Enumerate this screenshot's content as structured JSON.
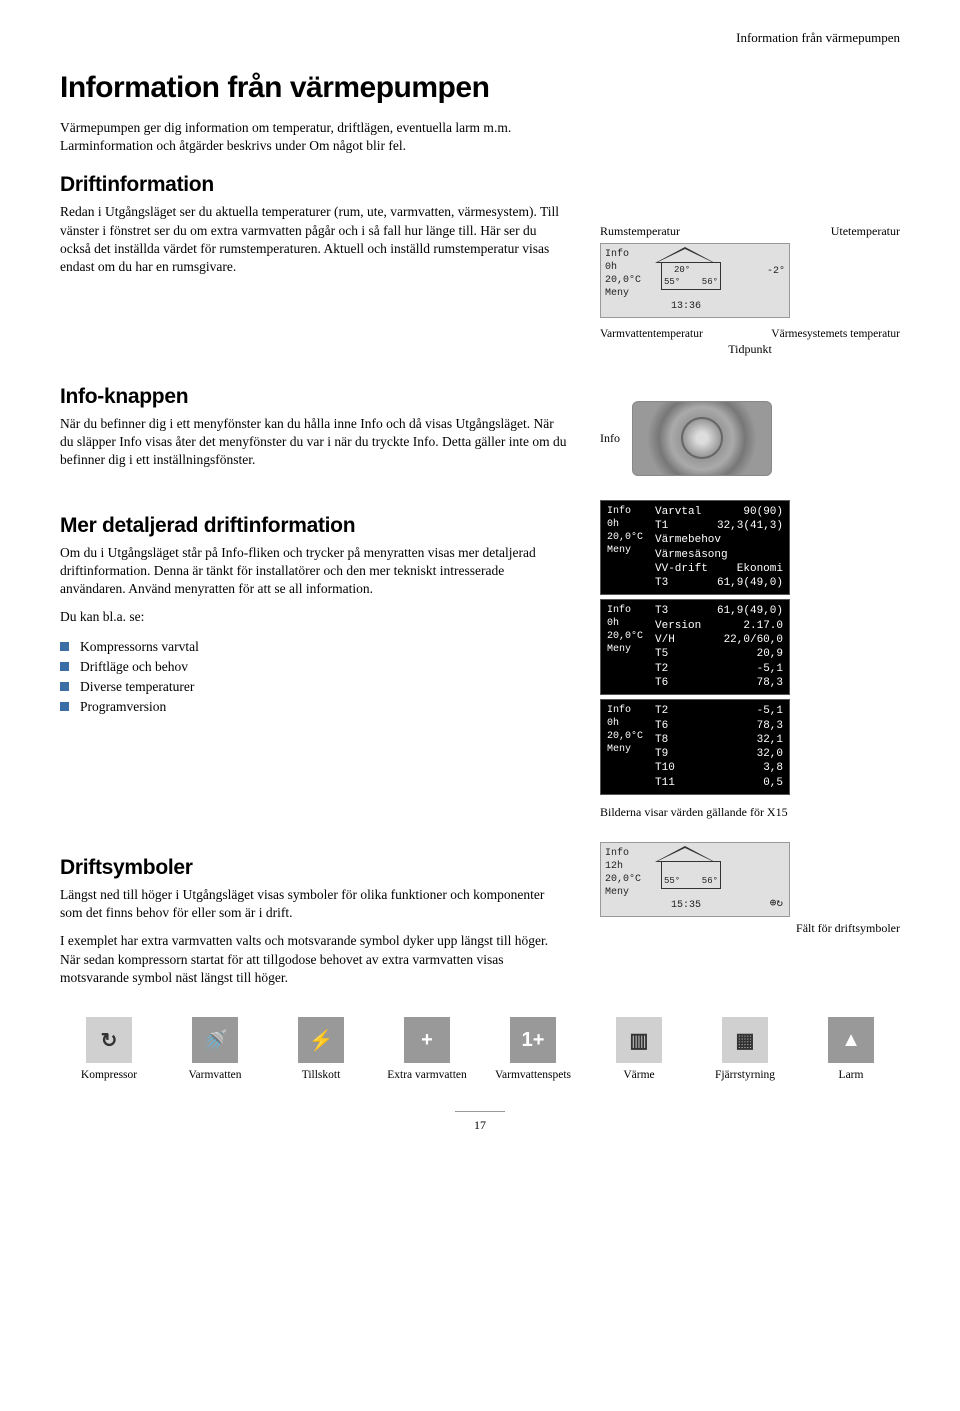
{
  "header": {
    "running_head": "Information från värmepumpen"
  },
  "title": "Information från värmepumpen",
  "intro": "Värmepumpen ger dig information om temperatur, driftlägen, eventuella larm m.m. Larminformation och åtgärder beskrivs under Om något blir fel.",
  "sec1": {
    "heading": "Driftinformation",
    "body": "Redan i Utgångsläget ser du aktuella temperaturer (rum, ute, varmvatten, värmesystem). Till vänster i fönstret ser du om extra varmvatten pågår och i så fall hur länge till. Här ser du också det inställda värdet för rumstemperaturen. Aktuell och inställd rumstemperatur visas endast om du har en rumsgivare.",
    "label_left": "Rumstemperatur",
    "label_right": "Utetemperatur",
    "lcd": {
      "side1": "Info",
      "side2": "0h",
      "side3": "20,0°C",
      "side4": "Meny",
      "val_in": "20°",
      "val_out": "-2°",
      "val_hw": "55°",
      "val_sys": "56°",
      "time": "13:36"
    },
    "annot_hw": "Varmvattentemperatur",
    "annot_sys": "Värmesystemets temperatur",
    "annot_time": "Tidpunkt"
  },
  "sec2": {
    "heading": "Info-knappen",
    "body": "När du befinner dig i ett menyfönster kan du hålla inne Info och då visas Utgångsläget. När du släpper Info visas åter det menyfönster du var i när du tryckte Info. Detta gäller inte om du befinner dig i ett inställningsfönster.",
    "label": "Info"
  },
  "sec3": {
    "heading": "Mer detaljerad driftinformation",
    "body": "Om du i Utgångsläget står på Info-fliken och trycker på menyratten visas mer detaljerad driftinformation. Denna är tänkt för installatörer och den mer tekniskt intresserade användaren. Använd menyratten för att se all information.",
    "list_intro": "Du kan bl.a. se:",
    "items": [
      "Kompressorns varvtal",
      "Driftläge och behov",
      "Diverse temperaturer",
      "Programversion"
    ],
    "lcd1": {
      "side1": "Info",
      "side2": "0h",
      "side3": "20,0°C",
      "side4": "Meny",
      "rows": [
        [
          "Varvtal",
          "90(90)"
        ],
        [
          "T1",
          "32,3(41,3)"
        ],
        [
          "Värmebehov",
          ""
        ],
        [
          "Värmesäsong",
          ""
        ],
        [
          "VV-drift",
          "Ekonomi"
        ],
        [
          "T3",
          "61,9(49,0)"
        ]
      ]
    },
    "lcd2": {
      "side1": "Info",
      "side2": "0h",
      "side3": "20,0°C",
      "side4": "Meny",
      "rows": [
        [
          "T3",
          "61,9(49,0)"
        ],
        [
          "Version",
          "2.17.0"
        ],
        [
          "V/H",
          "22,0/60,0"
        ],
        [
          "T5",
          "20,9"
        ],
        [
          "T2",
          "-5,1"
        ],
        [
          "T6",
          "78,3"
        ]
      ]
    },
    "lcd3": {
      "side1": "Info",
      "side2": "0h",
      "side3": "20,0°C",
      "side4": "Meny",
      "rows": [
        [
          "T2",
          "-5,1"
        ],
        [
          "T6",
          "78,3"
        ],
        [
          "T8",
          "32,1"
        ],
        [
          "T9",
          "32,0"
        ],
        [
          "T10",
          "3,8"
        ],
        [
          "T11",
          "0,5"
        ]
      ]
    },
    "caption": "Bilderna visar värden gällande för X15"
  },
  "sec4": {
    "heading": "Driftsymboler",
    "p1": "Längst ned till höger i Utgångsläget visas symboler för olika funktioner och komponenter som det finns behov för  eller som är i drift.",
    "p2": "I exemplet har extra varmvatten valts och motsvarande symbol dyker upp längst till höger. När sedan kompressorn startat för att tillgodose behovet av extra varmvatten visas motsvarande symbol näst längst till höger.",
    "lcd": {
      "side1": "Info",
      "side2": "12h",
      "side3": "20,0°C",
      "side4": "Meny",
      "val_hw": "55°",
      "val_sys": "56°",
      "time": "15:35"
    },
    "caption": "Fält för driftsymboler"
  },
  "icons": [
    {
      "glyph": "↻",
      "label": "Kompressor",
      "light": true
    },
    {
      "glyph": "🚿",
      "label": "Varmvatten",
      "light": false
    },
    {
      "glyph": "⚡",
      "label": "Tillskott",
      "light": false
    },
    {
      "glyph": "+",
      "label": "Extra varmvatten",
      "light": false
    },
    {
      "glyph": "1+",
      "label": "Varmvattenspets",
      "light": false
    },
    {
      "glyph": "▥",
      "label": "Värme",
      "light": true
    },
    {
      "glyph": "▦",
      "label": "Fjärrstyrning",
      "light": true
    },
    {
      "glyph": "▲",
      "label": "Larm",
      "light": false
    }
  ],
  "page_number": "17"
}
